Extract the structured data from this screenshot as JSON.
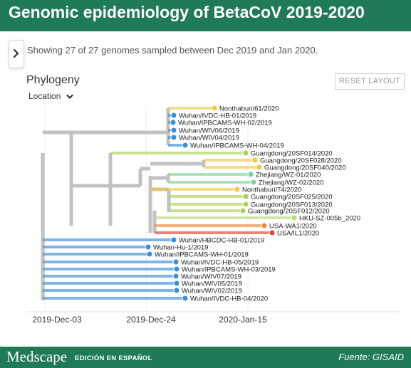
{
  "header": {
    "title": "Genomic epidemiology of BetaCoV 2019-2020",
    "bg_color": "#1f7a56"
  },
  "summary": "Showing 27 of 27 genomes sampled between Dec 2019 and Jan 2020.",
  "panel": {
    "title": "Phylogeny",
    "reset_label": "RESET LAYOUT",
    "color_by": "Location"
  },
  "colors": {
    "wuhan": "#3b8fd9",
    "thailand": "#f0c84a",
    "guangdong": "#a8d35a",
    "zhejiang": "#7ad39a",
    "usa_wa": "#ee8a3c",
    "usa_il": "#e0452e",
    "hku": "#b6dd7a",
    "internal": "#c2c2c2"
  },
  "axis": {
    "ticks": [
      "2019-Dec-03",
      "2019-Dec-24",
      "2020-Jan-15"
    ]
  },
  "tips": [
    {
      "name": "Nonthaburi/61/2020",
      "location": "thailand"
    },
    {
      "name": "Wuhan/IVDC-HB-01/2019",
      "location": "wuhan"
    },
    {
      "name": "Wuhan/IPBCAMS-WH-02/2019",
      "location": "wuhan"
    },
    {
      "name": "Wuhan/WIV06/2019",
      "location": "wuhan"
    },
    {
      "name": "Wuhan/WIV04/2019",
      "location": "wuhan"
    },
    {
      "name": "Wuhan/IPBCAMS-WH-04/2019",
      "location": "wuhan"
    },
    {
      "name": "Guangdong/20SF014/2020",
      "location": "guangdong"
    },
    {
      "name": "Guangdong/20SF028/2020",
      "location": "thailand"
    },
    {
      "name": "Guangdong/20SF040/2020",
      "location": "thailand"
    },
    {
      "name": "Zhejiang/WZ-01/2020",
      "location": "zhejiang"
    },
    {
      "name": "Zhejiang/WZ-02/2020",
      "location": "zhejiang"
    },
    {
      "name": "Nonthaburi/74/2020",
      "location": "thailand"
    },
    {
      "name": "Guangdong/20SF025/2020",
      "location": "guangdong"
    },
    {
      "name": "Guangdong/20SF013/2020",
      "location": "guangdong"
    },
    {
      "name": "Guangdong/20SF012/2020",
      "location": "guangdong"
    },
    {
      "name": "HKU-SZ-005b_2020",
      "location": "hku"
    },
    {
      "name": "USA-WA1/2020",
      "location": "usa_wa"
    },
    {
      "name": "USA/IL1/2020",
      "location": "usa_il"
    },
    {
      "name": "Wuhan/HBCDC-HB-01/2019",
      "location": "wuhan"
    },
    {
      "name": "Wuhan-Hu-1/2019",
      "location": "wuhan"
    },
    {
      "name": "Wuhan/IPBCAMS-WH-01/2019",
      "location": "wuhan"
    },
    {
      "name": "Wuhan/IVDC-HB-05/2019",
      "location": "wuhan"
    },
    {
      "name": "Wuhan/IPBCAMS-WH-03/2019",
      "location": "wuhan"
    },
    {
      "name": "Wuhan/WIV07/2019",
      "location": "wuhan"
    },
    {
      "name": "Wuhan/WIV05/2019",
      "location": "wuhan"
    },
    {
      "name": "Wuhan/WIV02/2019",
      "location": "wuhan"
    },
    {
      "name": "Wuhan/IVDC-HB-04/2020",
      "location": "wuhan"
    }
  ],
  "footer": {
    "brand": "Medscape",
    "brand_sub": "EDICIÓN EN ESPAÑOL",
    "source": "Fuente: GISAID"
  }
}
